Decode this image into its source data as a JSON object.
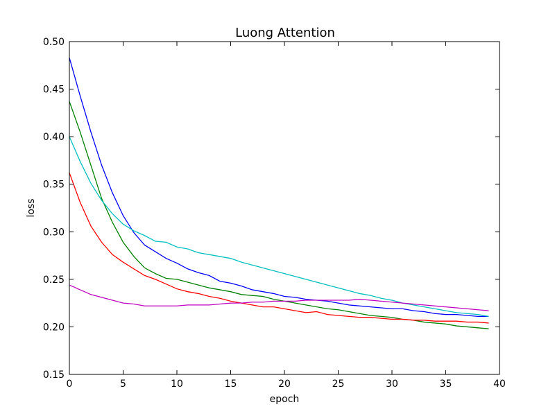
{
  "chart_data": {
    "type": "line",
    "title": "Luong Attention",
    "xlabel": "epoch",
    "ylabel": "loss",
    "xlim": [
      0,
      40
    ],
    "ylim": [
      0.15,
      0.5
    ],
    "xticks": [
      "0",
      "5",
      "10",
      "15",
      "20",
      "25",
      "30",
      "35",
      "40"
    ],
    "yticks": [
      "0.15",
      "0.20",
      "0.25",
      "0.30",
      "0.35",
      "0.40",
      "0.45",
      "0.50"
    ],
    "grid": false,
    "legend": "none",
    "x": [
      0,
      1,
      2,
      3,
      4,
      5,
      6,
      7,
      8,
      9,
      10,
      11,
      12,
      13,
      14,
      15,
      16,
      17,
      18,
      19,
      20,
      21,
      22,
      23,
      24,
      25,
      26,
      27,
      28,
      29,
      30,
      31,
      32,
      33,
      34,
      35,
      36,
      37,
      38,
      39
    ],
    "series": [
      {
        "color": "#0000ff",
        "values": [
          0.483,
          0.443,
          0.405,
          0.37,
          0.341,
          0.317,
          0.299,
          0.286,
          0.279,
          0.272,
          0.267,
          0.261,
          0.257,
          0.254,
          0.248,
          0.246,
          0.243,
          0.239,
          0.237,
          0.235,
          0.232,
          0.231,
          0.229,
          0.228,
          0.227,
          0.225,
          0.223,
          0.222,
          0.221,
          0.22,
          0.219,
          0.219,
          0.217,
          0.216,
          0.214,
          0.213,
          0.213,
          0.212,
          0.211,
          0.211
        ]
      },
      {
        "color": "#008000",
        "values": [
          0.437,
          0.405,
          0.37,
          0.335,
          0.31,
          0.289,
          0.274,
          0.262,
          0.256,
          0.251,
          0.25,
          0.247,
          0.244,
          0.241,
          0.239,
          0.237,
          0.234,
          0.233,
          0.232,
          0.229,
          0.227,
          0.225,
          0.223,
          0.221,
          0.219,
          0.218,
          0.216,
          0.214,
          0.212,
          0.211,
          0.21,
          0.208,
          0.207,
          0.205,
          0.204,
          0.203,
          0.201,
          0.2,
          0.199,
          0.198
        ]
      },
      {
        "color": "#ff0000",
        "values": [
          0.362,
          0.331,
          0.306,
          0.289,
          0.276,
          0.268,
          0.261,
          0.254,
          0.25,
          0.245,
          0.24,
          0.237,
          0.235,
          0.232,
          0.23,
          0.227,
          0.225,
          0.223,
          0.221,
          0.221,
          0.219,
          0.217,
          0.215,
          0.216,
          0.213,
          0.212,
          0.211,
          0.21,
          0.21,
          0.209,
          0.208,
          0.208,
          0.207,
          0.207,
          0.206,
          0.206,
          0.206,
          0.205,
          0.205,
          0.204
        ]
      },
      {
        "color": "#00bfbf",
        "values": [
          0.4,
          0.374,
          0.351,
          0.333,
          0.319,
          0.308,
          0.301,
          0.296,
          0.29,
          0.289,
          0.284,
          0.282,
          0.278,
          0.276,
          0.274,
          0.272,
          0.268,
          0.265,
          0.262,
          0.259,
          0.256,
          0.253,
          0.25,
          0.247,
          0.244,
          0.241,
          0.238,
          0.235,
          0.233,
          0.23,
          0.228,
          0.225,
          0.223,
          0.221,
          0.219,
          0.217,
          0.215,
          0.214,
          0.213,
          0.211
        ]
      },
      {
        "color": "#bf00bf",
        "values": [
          0.244,
          0.239,
          0.234,
          0.231,
          0.228,
          0.225,
          0.224,
          0.222,
          0.222,
          0.222,
          0.222,
          0.223,
          0.223,
          0.223,
          0.224,
          0.225,
          0.225,
          0.226,
          0.226,
          0.227,
          0.227,
          0.227,
          0.228,
          0.228,
          0.228,
          0.228,
          0.228,
          0.229,
          0.228,
          0.227,
          0.226,
          0.225,
          0.224,
          0.223,
          0.222,
          0.221,
          0.22,
          0.219,
          0.218,
          0.217
        ]
      }
    ]
  }
}
